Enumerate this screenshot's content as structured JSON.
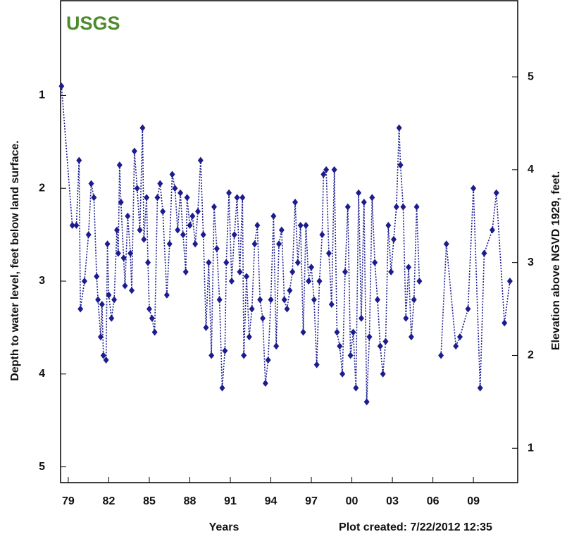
{
  "chart_data": {
    "type": "line",
    "logo": "USGS",
    "x_label": "Years",
    "y_label": "Depth to water level, feet below land surface.",
    "y2_label": "Elevation above NGVD 1929, feet.",
    "note": "Plot created: 7/22/2012 12:35",
    "xlim": [
      1978.43,
      2012.28
    ],
    "xticks": [
      {
        "value": 1979,
        "label": "79"
      },
      {
        "value": 1982,
        "label": "82"
      },
      {
        "value": 1985,
        "label": "85"
      },
      {
        "value": 1988,
        "label": "88"
      },
      {
        "value": 1991,
        "label": "91"
      },
      {
        "value": 1994,
        "label": "94"
      },
      {
        "value": 1997,
        "label": "97"
      },
      {
        "value": 2000,
        "label": "00"
      },
      {
        "value": 2003,
        "label": "03"
      },
      {
        "value": 2006,
        "label": "06"
      },
      {
        "value": 2009,
        "label": "09"
      }
    ],
    "ylim": [
      -0.02,
      5.17
    ],
    "y_inverted": true,
    "yticks": [
      1,
      2,
      3,
      4,
      5
    ],
    "y2lim": [
      0.63,
      5.82
    ],
    "y2ticks": [
      1,
      2,
      3,
      4,
      5
    ],
    "x": [
      1978.5,
      1979.3,
      1979.6,
      1979.8,
      1979.9,
      1980.2,
      1980.5,
      1980.7,
      1980.9,
      1981.1,
      1981.2,
      1981.4,
      1981.5,
      1981.6,
      1981.8,
      1981.9,
      1982.0,
      1982.2,
      1982.4,
      1982.6,
      1982.7,
      1982.8,
      1982.9,
      1983.1,
      1983.2,
      1983.4,
      1983.6,
      1983.7,
      1983.9,
      1984.1,
      1984.3,
      1984.5,
      1984.6,
      1984.8,
      1984.9,
      1985.0,
      1985.2,
      1985.4,
      1985.6,
      1985.8,
      1986.0,
      1986.3,
      1986.5,
      1986.7,
      1986.9,
      1987.1,
      1987.3,
      1987.5,
      1987.7,
      1987.8,
      1988.0,
      1988.2,
      1988.4,
      1988.6,
      1988.8,
      1989.0,
      1989.2,
      1989.4,
      1989.6,
      1989.8,
      1990.0,
      1990.2,
      1990.4,
      1990.6,
      1990.7,
      1990.9,
      1991.1,
      1991.3,
      1991.5,
      1991.7,
      1991.9,
      1992.0,
      1992.2,
      1992.4,
      1992.6,
      1992.8,
      1993.0,
      1993.2,
      1993.4,
      1993.6,
      1993.8,
      1994.0,
      1994.2,
      1994.4,
      1994.6,
      1994.8,
      1995.0,
      1995.2,
      1995.4,
      1995.6,
      1995.8,
      1996.0,
      1996.2,
      1996.4,
      1996.6,
      1996.8,
      1997.0,
      1997.2,
      1997.4,
      1997.6,
      1997.8,
      1997.9,
      1998.1,
      1998.3,
      1998.5,
      1998.7,
      1998.9,
      1999.1,
      1999.3,
      1999.5,
      1999.7,
      1999.9,
      2000.1,
      2000.3,
      2000.5,
      2000.7,
      2000.9,
      2001.1,
      2001.3,
      2001.5,
      2001.7,
      2001.9,
      2002.1,
      2002.3,
      2002.5,
      2002.7,
      2002.9,
      2003.1,
      2003.3,
      2003.5,
      2003.6,
      2003.8,
      2004.0,
      2004.2,
      2004.4,
      2004.6,
      2004.8,
      2005.0,
      2005.8,
      2006.6,
      2007.0,
      2007.7,
      2008.0,
      2008.6,
      2009.0,
      2009.5,
      2009.8,
      2010.4,
      2010.7,
      2011.3,
      2011.7
    ],
    "series": [
      {
        "color": "#1c1c8e",
        "values": [
          0.9,
          2.4,
          2.4,
          1.7,
          3.3,
          3.0,
          2.5,
          1.95,
          2.1,
          2.95,
          3.2,
          3.6,
          3.25,
          3.8,
          3.85,
          2.6,
          3.15,
          3.4,
          3.2,
          2.45,
          2.7,
          1.75,
          2.15,
          2.75,
          3.05,
          2.3,
          2.7,
          3.1,
          1.6,
          2.0,
          2.45,
          1.35,
          2.55,
          2.1,
          2.8,
          3.3,
          3.4,
          3.55,
          2.1,
          1.95,
          2.25,
          3.15,
          2.6,
          1.85,
          2.0,
          2.45,
          2.05,
          2.5,
          2.9,
          2.1,
          2.4,
          2.3,
          2.6,
          2.25,
          1.7,
          2.5,
          3.5,
          2.8,
          3.8,
          2.2,
          2.65,
          3.2,
          4.15,
          3.75,
          2.8,
          2.05,
          3.0,
          2.5,
          2.1,
          2.9,
          2.1,
          3.8,
          2.95,
          3.6,
          3.3,
          2.6,
          2.4,
          3.2,
          3.4,
          4.1,
          3.85,
          3.2,
          2.3,
          3.7,
          2.6,
          2.45,
          3.2,
          3.3,
          3.1,
          2.9,
          2.15,
          2.8,
          2.4,
          3.55,
          2.4,
          3.0,
          2.85,
          3.2,
          3.9,
          3.0,
          2.5,
          1.85,
          1.8,
          2.7,
          3.25,
          1.8,
          3.55,
          3.7,
          4.0,
          2.9,
          2.2,
          3.8,
          3.55,
          4.15,
          2.05,
          3.4,
          2.15,
          4.3,
          3.6,
          2.1,
          2.8,
          3.2,
          3.7,
          4.0,
          3.65,
          2.4,
          2.9,
          2.55,
          2.2,
          1.35,
          1.75,
          2.2,
          3.4,
          2.85,
          3.6,
          3.2,
          2.2,
          3.0,
          null,
          3.8,
          2.6,
          3.7,
          3.6,
          3.3,
          2.0,
          4.15,
          2.7,
          2.45,
          2.05,
          3.45,
          3.0
        ]
      }
    ]
  }
}
